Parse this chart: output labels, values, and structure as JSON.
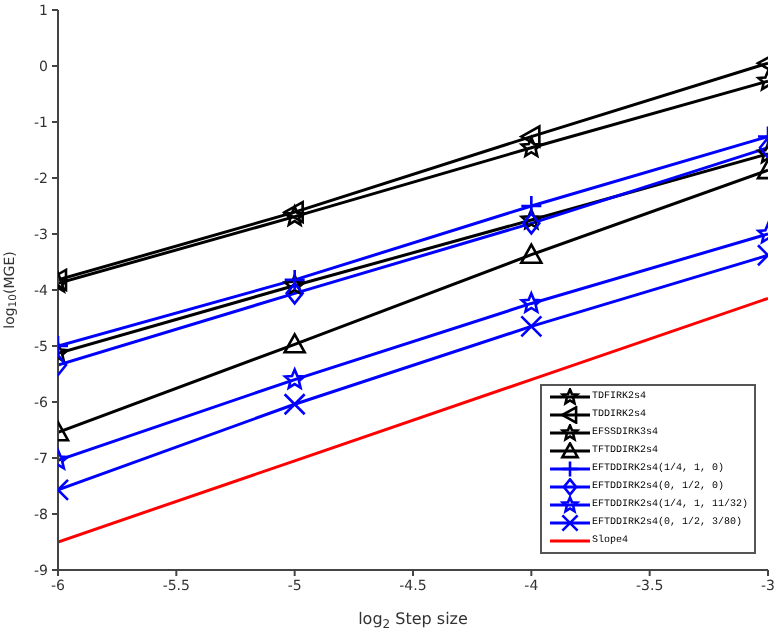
{
  "chart_data": {
    "type": "line",
    "xlabel": "log$_{2}$ Step size",
    "ylabel": "log$_{10}$(MGE)",
    "x": [
      -6,
      -5,
      -4,
      -3
    ],
    "xlim": [
      -6,
      -3
    ],
    "xticks": [
      -6,
      -5.5,
      -5,
      -4.5,
      -4,
      -3.5,
      -3
    ],
    "ylim": [
      -9,
      1
    ],
    "yticks": [
      -9,
      -8,
      -7,
      -6,
      -5,
      -4,
      -3,
      -2,
      -1,
      0,
      1
    ],
    "grid": false,
    "legend": "bottom right",
    "series": [
      {
        "name": "TDFIRK2s4",
        "color": "#000000",
        "marker": "star",
        "values": [
          -3.88,
          -2.69,
          -1.46,
          -0.27
        ]
      },
      {
        "name": "TDDIRK2s4",
        "color": "#000000",
        "marker": "triangle-left",
        "values": [
          -3.82,
          -2.61,
          -1.26,
          0.05
        ]
      },
      {
        "name": "EFSSDIRK3s4",
        "color": "#000000",
        "marker": "star",
        "values": [
          -5.13,
          -3.92,
          -2.75,
          -1.57
        ]
      },
      {
        "name": "TFTDDIRK2s4",
        "color": "#000000",
        "marker": "triangle",
        "values": [
          -6.54,
          -4.97,
          -3.37,
          -1.86
        ]
      },
      {
        "name": "EFTDDIRK2s4(1/4, 1, 0)",
        "color": "#0000ff",
        "marker": "plus",
        "values": [
          -5.0,
          -3.82,
          -2.5,
          -1.26
        ]
      },
      {
        "name": "EFTDDIRK2s4(0, 1/2, 0)",
        "color": "#0000ff",
        "marker": "diamond",
        "values": [
          -5.34,
          -4.06,
          -2.81,
          -1.46
        ]
      },
      {
        "name": "EFTDDIRK2s4(1/4, 1, 11/32)",
        "color": "#0000ff",
        "marker": "star",
        "values": [
          -7.04,
          -5.6,
          -4.24,
          -3.0
        ]
      },
      {
        "name": "EFTDDIRK2s4(0, 1/2, 3/80)",
        "color": "#0000ff",
        "marker": "x",
        "values": [
          -7.57,
          -6.04,
          -4.65,
          -3.38
        ]
      },
      {
        "name": "Slope4",
        "color": "#ff0000",
        "marker": "none",
        "values": [
          -8.5,
          -7.05,
          -5.6,
          -4.15
        ]
      }
    ]
  }
}
